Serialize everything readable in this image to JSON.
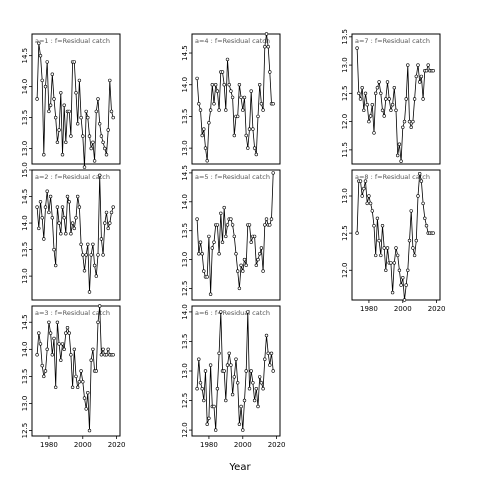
{
  "chart_data": {
    "type": "line",
    "xlabel": "Year",
    "panels": [
      {
        "title": "a=1 : f=Residual catch",
        "ylim": [
          12.75,
          14.85
        ],
        "yticks": [
          13.0,
          13.5,
          14.0,
          14.5
        ],
        "x": [
          1973,
          1974,
          1975,
          1976,
          1977,
          1978,
          1979,
          1980,
          1981,
          1982,
          1983,
          1984,
          1985,
          1986,
          1987,
          1988,
          1989,
          1990,
          1991,
          1992,
          1993,
          1994,
          1995,
          1996,
          1997,
          1998,
          1999,
          2000,
          2001,
          2002,
          2003,
          2004,
          2005,
          2006,
          2007,
          2008,
          2009,
          2010,
          2011,
          2012,
          2013,
          2014,
          2015,
          2016,
          2017,
          2018
        ],
        "y": [
          13.8,
          14.7,
          14.5,
          14.1,
          12.9,
          14.0,
          14.4,
          13.6,
          13.7,
          14.2,
          13.8,
          13.5,
          13.1,
          13.3,
          13.9,
          12.9,
          13.7,
          13.1,
          13.6,
          13.6,
          13.2,
          14.4,
          14.4,
          13.9,
          13.4,
          14.1,
          13.5,
          13.2,
          12.7,
          13.6,
          13.5,
          13.2,
          13.0,
          13.1,
          12.8,
          13.6,
          13.8,
          13.4,
          13.2,
          13.1,
          13.0,
          12.9,
          13.3,
          14.1,
          13.6,
          13.5
        ]
      },
      {
        "title": "a=2 : f=Residual catch",
        "ylim": [
          12.55,
          15.0
        ],
        "yticks": [
          13.0,
          13.5,
          14.0,
          14.5,
          15.0
        ],
        "x": [
          1973,
          1974,
          1975,
          1976,
          1977,
          1978,
          1979,
          1980,
          1981,
          1982,
          1983,
          1984,
          1985,
          1986,
          1987,
          1988,
          1989,
          1990,
          1991,
          1992,
          1993,
          1994,
          1995,
          1996,
          1997,
          1998,
          1999,
          2000,
          2001,
          2002,
          2003,
          2004,
          2005,
          2006,
          2007,
          2008,
          2009,
          2010,
          2011,
          2012,
          2013,
          2014,
          2015,
          2016,
          2017,
          2018
        ],
        "y": [
          14.3,
          13.9,
          14.4,
          14.1,
          13.7,
          14.3,
          14.6,
          14.2,
          14.5,
          14.1,
          13.5,
          13.2,
          14.3,
          14.0,
          13.8,
          14.3,
          14.1,
          13.8,
          14.5,
          14.4,
          13.8,
          14.0,
          13.9,
          14.1,
          14.5,
          14.3,
          13.6,
          13.4,
          13.1,
          13.4,
          13.6,
          12.7,
          13.4,
          13.6,
          13.2,
          13.0,
          13.4,
          14.9,
          13.7,
          13.4,
          14.0,
          14.2,
          13.9,
          14.0,
          14.2,
          14.3
        ]
      },
      {
        "title": "a=3 : f=Residual catch",
        "ylim": [
          12.4,
          14.8
        ],
        "yticks": [
          12.5,
          13.0,
          13.5,
          14.0,
          14.5
        ],
        "x": [
          1973,
          1974,
          1975,
          1976,
          1977,
          1978,
          1979,
          1980,
          1981,
          1982,
          1983,
          1984,
          1985,
          1986,
          1987,
          1988,
          1989,
          1990,
          1991,
          1992,
          1993,
          1994,
          1995,
          1996,
          1997,
          1998,
          1999,
          2000,
          2001,
          2002,
          2003,
          2004,
          2005,
          2006,
          2007,
          2008,
          2009,
          2010,
          2011,
          2012,
          2013,
          2014,
          2015,
          2016,
          2017,
          2018
        ],
        "y": [
          13.9,
          14.3,
          14.1,
          13.7,
          13.5,
          13.6,
          14.0,
          14.5,
          14.3,
          13.9,
          14.2,
          13.3,
          14.5,
          14.1,
          13.8,
          14.1,
          14.0,
          14.3,
          14.4,
          14.3,
          13.9,
          13.3,
          14.0,
          13.5,
          13.3,
          13.4,
          13.6,
          13.4,
          13.1,
          12.9,
          13.2,
          12.5,
          13.8,
          14.0,
          13.6,
          13.6,
          14.5,
          14.8,
          13.9,
          14.0,
          13.9,
          13.9,
          14.0,
          13.9,
          13.9,
          13.9
        ]
      },
      {
        "title": "a=4 : f=Residual catch",
        "ylim": [
          12.75,
          14.8
        ],
        "yticks": [
          13.0,
          13.5,
          14.0,
          14.5
        ],
        "x": [
          1973,
          1974,
          1975,
          1976,
          1977,
          1978,
          1979,
          1980,
          1981,
          1982,
          1983,
          1984,
          1985,
          1986,
          1987,
          1988,
          1989,
          1990,
          1991,
          1992,
          1993,
          1994,
          1995,
          1996,
          1997,
          1998,
          1999,
          2000,
          2001,
          2002,
          2003,
          2004,
          2005,
          2006,
          2007,
          2008,
          2009,
          2010,
          2011,
          2012,
          2013,
          2014,
          2015,
          2016,
          2017,
          2018
        ],
        "y": [
          14.1,
          13.7,
          13.6,
          13.2,
          13.3,
          13.0,
          12.8,
          13.4,
          13.6,
          14.0,
          13.7,
          14.0,
          13.9,
          13.6,
          14.2,
          14.2,
          14.0,
          13.6,
          14.4,
          14.0,
          13.9,
          13.8,
          13.2,
          13.5,
          13.5,
          14.0,
          13.8,
          13.6,
          13.8,
          13.2,
          13.0,
          13.3,
          13.9,
          13.3,
          13.0,
          12.9,
          13.5,
          14.0,
          13.7,
          13.6,
          14.6,
          14.8,
          14.6,
          14.2,
          13.7,
          13.7
        ]
      },
      {
        "title": "a=5 : f=Residual catch",
        "ylim": [
          12.3,
          14.55
        ],
        "yticks": [
          12.5,
          13.0,
          13.5,
          14.0,
          14.5
        ],
        "x": [
          1973,
          1974,
          1975,
          1976,
          1977,
          1978,
          1979,
          1980,
          1981,
          1982,
          1983,
          1984,
          1985,
          1986,
          1987,
          1988,
          1989,
          1990,
          1991,
          1992,
          1993,
          1994,
          1995,
          1996,
          1997,
          1998,
          1999,
          2000,
          2001,
          2002,
          2003,
          2004,
          2005,
          2006,
          2007,
          2008,
          2009,
          2010,
          2011,
          2012,
          2013,
          2014,
          2015,
          2016,
          2017,
          2018
        ],
        "y": [
          13.7,
          13.1,
          13.3,
          13.1,
          12.8,
          12.7,
          12.7,
          13.4,
          12.4,
          13.2,
          13.3,
          13.6,
          13.6,
          13.1,
          13.8,
          13.3,
          13.9,
          13.4,
          13.6,
          13.7,
          13.7,
          13.6,
          13.4,
          13.1,
          12.8,
          12.5,
          12.9,
          12.8,
          13.0,
          12.9,
          13.6,
          13.6,
          13.3,
          13.4,
          13.4,
          12.9,
          13.0,
          13.1,
          13.2,
          12.8,
          13.6,
          13.7,
          13.6,
          13.6,
          13.7,
          14.5
        ]
      },
      {
        "title": "a=6 : f=Residual catch",
        "ylim": [
          11.9,
          14.1
        ],
        "yticks": [
          12.0,
          12.5,
          13.0,
          13.5,
          14.0
        ],
        "x": [
          1973,
          1974,
          1975,
          1976,
          1977,
          1978,
          1979,
          1980,
          1981,
          1982,
          1983,
          1984,
          1985,
          1986,
          1987,
          1988,
          1989,
          1990,
          1991,
          1992,
          1993,
          1994,
          1995,
          1996,
          1997,
          1998,
          1999,
          2000,
          2001,
          2002,
          2003,
          2004,
          2005,
          2006,
          2007,
          2008,
          2009,
          2010,
          2011,
          2012,
          2013,
          2014,
          2015,
          2016,
          2017,
          2018
        ],
        "y": [
          12.7,
          13.2,
          12.8,
          12.7,
          12.5,
          13.0,
          12.1,
          12.2,
          13.1,
          12.4,
          12.4,
          12.0,
          12.7,
          13.3,
          14.0,
          13.0,
          13.0,
          12.5,
          13.1,
          13.3,
          13.1,
          12.6,
          12.9,
          13.2,
          12.8,
          12.1,
          12.4,
          12.0,
          12.5,
          13.0,
          14.0,
          12.7,
          13.0,
          12.8,
          12.5,
          12.7,
          12.4,
          12.9,
          12.8,
          12.7,
          13.2,
          13.6,
          13.3,
          13.1,
          13.3,
          13.0
        ]
      },
      {
        "title": "a=7 : f=Residual catch",
        "ylim": [
          11.25,
          13.55
        ],
        "yticks": [
          11.5,
          12.0,
          12.5,
          13.0,
          13.5
        ],
        "x": [
          1973,
          1974,
          1975,
          1976,
          1977,
          1978,
          1979,
          1980,
          1981,
          1982,
          1983,
          1984,
          1985,
          1986,
          1987,
          1988,
          1989,
          1990,
          1991,
          1992,
          1993,
          1994,
          1995,
          1996,
          1997,
          1998,
          1999,
          2000,
          2001,
          2002,
          2003,
          2004,
          2005,
          2006,
          2007,
          2008,
          2009,
          2010,
          2011,
          2012,
          2013,
          2014,
          2015,
          2016,
          2017,
          2018
        ],
        "y": [
          13.3,
          12.5,
          12.4,
          12.6,
          12.2,
          12.5,
          12.3,
          12.0,
          12.1,
          12.3,
          11.8,
          12.5,
          12.6,
          12.7,
          12.5,
          12.2,
          12.1,
          12.4,
          12.7,
          12.4,
          12.2,
          12.3,
          12.6,
          12.2,
          11.4,
          11.6,
          11.3,
          11.9,
          12.0,
          12.4,
          13.0,
          12.0,
          11.9,
          12.0,
          12.4,
          12.8,
          13.0,
          12.7,
          12.8,
          12.4,
          12.9,
          12.9,
          13.0,
          12.9,
          12.9,
          12.9
        ]
      },
      {
        "title": "a=8 : f=Residual catch",
        "ylim": [
          11.6,
          13.35
        ],
        "yticks": [
          12.0,
          12.5,
          13.0
        ],
        "x": [
          1973,
          1974,
          1975,
          1976,
          1977,
          1978,
          1979,
          1980,
          1981,
          1982,
          1983,
          1984,
          1985,
          1986,
          1987,
          1988,
          1989,
          1990,
          1991,
          1992,
          1993,
          1994,
          1995,
          1996,
          1997,
          1998,
          1999,
          2000,
          2001,
          2002,
          2003,
          2004,
          2005,
          2006,
          2007,
          2008,
          2009,
          2010,
          2011,
          2012,
          2013,
          2014,
          2015,
          2016,
          2017,
          2018
        ],
        "y": [
          12.5,
          13.2,
          13.2,
          13.0,
          13.1,
          13.2,
          12.9,
          13.0,
          12.9,
          12.8,
          12.6,
          12.2,
          12.7,
          12.4,
          12.2,
          12.6,
          12.3,
          12.0,
          12.3,
          12.1,
          12.1,
          11.7,
          12.1,
          12.3,
          12.2,
          12.0,
          11.8,
          11.9,
          11.6,
          11.8,
          12.0,
          12.4,
          12.8,
          12.3,
          12.2,
          12.4,
          13.0,
          13.3,
          13.2,
          12.9,
          12.7,
          12.6,
          12.5,
          12.5,
          12.5,
          12.5
        ]
      }
    ],
    "xlim": [
      1970,
      2022
    ],
    "xticks": [
      1980,
      2000,
      2020
    ],
    "grid": false
  }
}
